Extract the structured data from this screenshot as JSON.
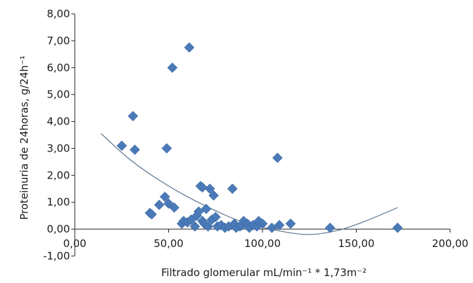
{
  "chart_data": {
    "type": "scatter",
    "title": "",
    "xlabel": "Filtrado glomerular mL/min⁻¹ * 1,73m⁻²",
    "ylabel": "Proteinuria de 24horas, g/24h⁻¹",
    "xlim": [
      0,
      200
    ],
    "ylim": [
      -1,
      8
    ],
    "x_ticks": [
      0,
      50,
      100,
      150,
      200
    ],
    "x_tick_labels": [
      "0,00",
      "50,00",
      "100,00",
      "150,00",
      "200,00"
    ],
    "y_ticks": [
      -1,
      0,
      1,
      2,
      3,
      4,
      5,
      6,
      7,
      8
    ],
    "y_tick_labels": [
      "-1,00",
      "0,00",
      "1,00",
      "2,00",
      "3,00",
      "4,00",
      "5,00",
      "6,00",
      "7,00",
      "8,00"
    ],
    "grid": false,
    "legend": false,
    "marker": "diamond",
    "marker_color": "#4a7ab8",
    "trendline_color": "#5a7290",
    "trendline": {
      "type": "polynomial",
      "points": [
        [
          14,
          3.55
        ],
        [
          30,
          2.55
        ],
        [
          50,
          1.6
        ],
        [
          70,
          0.85
        ],
        [
          90,
          0.25
        ],
        [
          110,
          -0.08
        ],
        [
          125,
          -0.2
        ],
        [
          140,
          -0.05
        ],
        [
          155,
          0.3
        ],
        [
          172,
          0.8
        ]
      ]
    },
    "points": [
      [
        25,
        3.1
      ],
      [
        31,
        4.2
      ],
      [
        32,
        2.95
      ],
      [
        40,
        0.6
      ],
      [
        41,
        0.55
      ],
      [
        45,
        0.9
      ],
      [
        48,
        1.2
      ],
      [
        50,
        0.95
      ],
      [
        49,
        3.0
      ],
      [
        52,
        6.0
      ],
      [
        53,
        0.8
      ],
      [
        57,
        0.2
      ],
      [
        58,
        0.3
      ],
      [
        60,
        0.25
      ],
      [
        61,
        6.75
      ],
      [
        62,
        0.35
      ],
      [
        64,
        0.1
      ],
      [
        65,
        0.5
      ],
      [
        66,
        0.65
      ],
      [
        67,
        1.6
      ],
      [
        68,
        1.55
      ],
      [
        68,
        0.3
      ],
      [
        69,
        0.2
      ],
      [
        70,
        0.75
      ],
      [
        71,
        0.1
      ],
      [
        72,
        1.5
      ],
      [
        73,
        0.35
      ],
      [
        74,
        1.25
      ],
      [
        75,
        0.45
      ],
      [
        76,
        0.1
      ],
      [
        78,
        0.15
      ],
      [
        80,
        0.05
      ],
      [
        82,
        0.1
      ],
      [
        84,
        1.5
      ],
      [
        85,
        0.2
      ],
      [
        86,
        0.05
      ],
      [
        88,
        0.1
      ],
      [
        89,
        0.15
      ],
      [
        90,
        0.3
      ],
      [
        92,
        0.2
      ],
      [
        93,
        0.05
      ],
      [
        95,
        0.15
      ],
      [
        97,
        0.1
      ],
      [
        98,
        0.3
      ],
      [
        100,
        0.2
      ],
      [
        105,
        0.05
      ],
      [
        108,
        2.65
      ],
      [
        109,
        0.15
      ],
      [
        115,
        0.2
      ],
      [
        136,
        0.05
      ],
      [
        172,
        0.05
      ]
    ]
  }
}
